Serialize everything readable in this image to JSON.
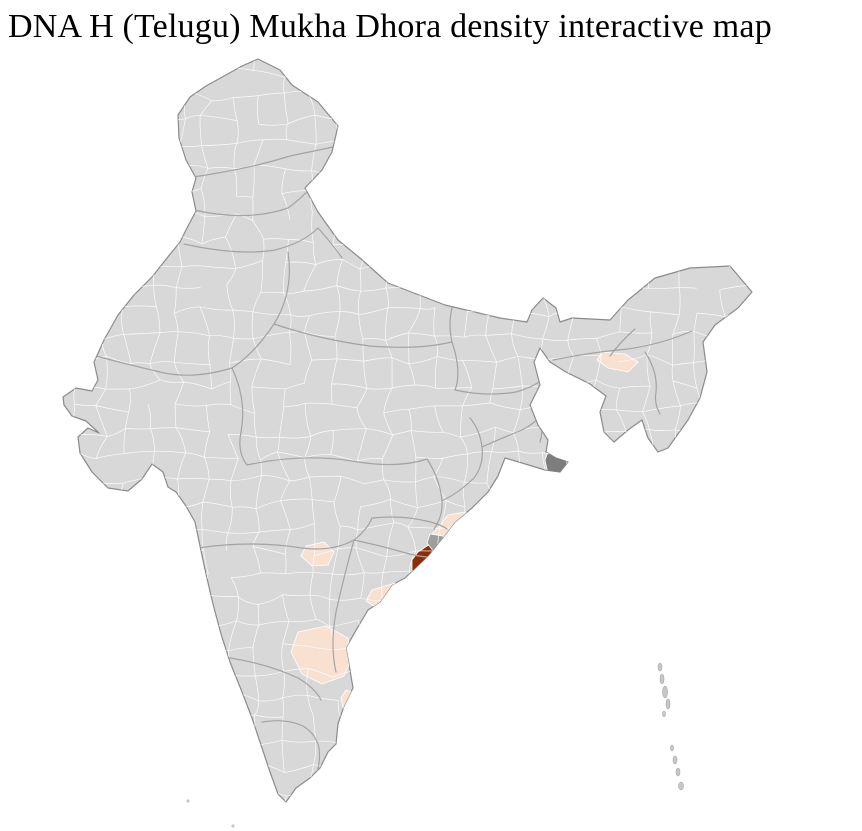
{
  "title": "DNA H (Telugu) Mukha Dhora density interactive map",
  "map": {
    "label": "India district-level choropleth",
    "colors": {
      "background": "#ffffff",
      "land": "#d8d8d8",
      "district_border": "#ffffff",
      "state_border": "#a3a3a3",
      "country_border": "#8b8b8b",
      "island": "#c7c7c7",
      "density_high": "#8c2d04",
      "density_low": "#f9e1d2"
    },
    "regions": [
      {
        "id": "east-coast-high-density",
        "level": "high",
        "color": "#8c2d04"
      },
      {
        "id": "adjacent-neutral-gray",
        "level": "neutral",
        "color": "#9e9e9e"
      },
      {
        "id": "northeast-of-high-low",
        "level": "low",
        "color": "#f9e1d2"
      },
      {
        "id": "coast-southeast-low",
        "level": "low",
        "color": "#f9e1d2"
      },
      {
        "id": "inland-west-low",
        "level": "low",
        "color": "#f9e1d2"
      },
      {
        "id": "central-plateau-low",
        "level": "low",
        "color": "#f9e1d2"
      },
      {
        "id": "south-inland-low",
        "level": "low",
        "color": "#f9e1d2"
      },
      {
        "id": "southeast-coast-low",
        "level": "low",
        "color": "#f9e1d2"
      },
      {
        "id": "northeast-assam-low",
        "level": "low",
        "color": "#f9e1d2"
      },
      {
        "id": "bengal-delta-dark-gray",
        "level": "neutral",
        "color": "#7d7d7d"
      }
    ]
  }
}
